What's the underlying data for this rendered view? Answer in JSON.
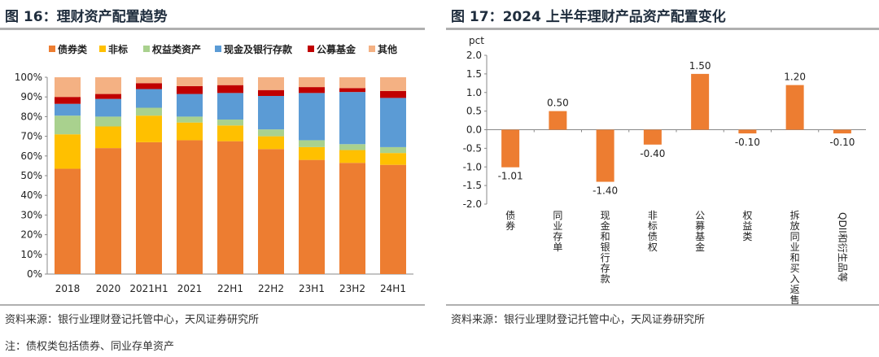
{
  "left": {
    "title": "图 16：理财资产配置趋势",
    "source": "资料来源：银行业理财登记托管中心，天风证券研究所",
    "note": "注：债权类包括债券、同业存单资产",
    "chart_data": {
      "type": "bar",
      "stacked": true,
      "categories": [
        "2018",
        "2020",
        "2021H1",
        "2021",
        "22H1",
        "22H2",
        "23H1",
        "23H2",
        "24H1"
      ],
      "yticks": [
        "0%",
        "10%",
        "20%",
        "30%",
        "40%",
        "50%",
        "60%",
        "70%",
        "80%",
        "90%",
        "100%"
      ],
      "ylim": [
        0,
        100
      ],
      "legend_position": "top",
      "series": [
        {
          "name": "债券类",
          "color": "#ED7D31",
          "values": [
            53.5,
            64,
            67,
            68,
            67.5,
            63.5,
            58,
            56.5,
            55.5
          ]
        },
        {
          "name": "非标",
          "color": "#FFC000",
          "values": [
            17.5,
            11,
            13.5,
            9,
            8,
            6.5,
            6.5,
            6.5,
            6
          ]
        },
        {
          "name": "权益类资产",
          "color": "#A9D18E",
          "values": [
            9.5,
            5,
            4,
            3,
            3,
            3.5,
            3.5,
            3,
            3
          ]
        },
        {
          "name": "现金及银行存款",
          "color": "#5B9BD5",
          "values": [
            6,
            9,
            9.5,
            11.5,
            13.5,
            17,
            24,
            26.5,
            25
          ]
        },
        {
          "name": "公募基金",
          "color": "#C00000",
          "values": [
            3.5,
            2.5,
            3,
            4,
            4,
            3,
            3,
            2,
            3.5
          ]
        },
        {
          "name": "其他",
          "color": "#F4B183",
          "values": [
            10,
            8.5,
            3,
            4.5,
            4,
            6.5,
            5,
            5.5,
            7
          ]
        }
      ]
    }
  },
  "right": {
    "title": "图 17：2024 上半年理财产品资产配置变化",
    "source": "资料来源：银行业理财登记托管中心，天风证券研究所",
    "chart_data": {
      "type": "bar",
      "ylabel": "pct",
      "ylim": [
        -2.0,
        2.0
      ],
      "yticks": [
        "2.0",
        "1.5",
        "1.0",
        "0.5",
        "0.0",
        "-0.5",
        "-1.0",
        "-1.5",
        "-2.0"
      ],
      "bar_color": "#ED7D31",
      "categories": [
        "债券",
        "同业存单",
        "现金和银行存款",
        "非标债权",
        "公募基金",
        "权益类",
        "拆放同业和买入返售",
        "QDII和衍生品等"
      ],
      "values": [
        -1.01,
        0.5,
        -1.4,
        -0.4,
        1.5,
        -0.1,
        1.2,
        -0.1
      ],
      "value_labels": [
        "-1.01",
        "0.50",
        "-1.40",
        "-0.40",
        "1.50",
        "-0.10",
        "1.20",
        "-0.10"
      ]
    }
  }
}
